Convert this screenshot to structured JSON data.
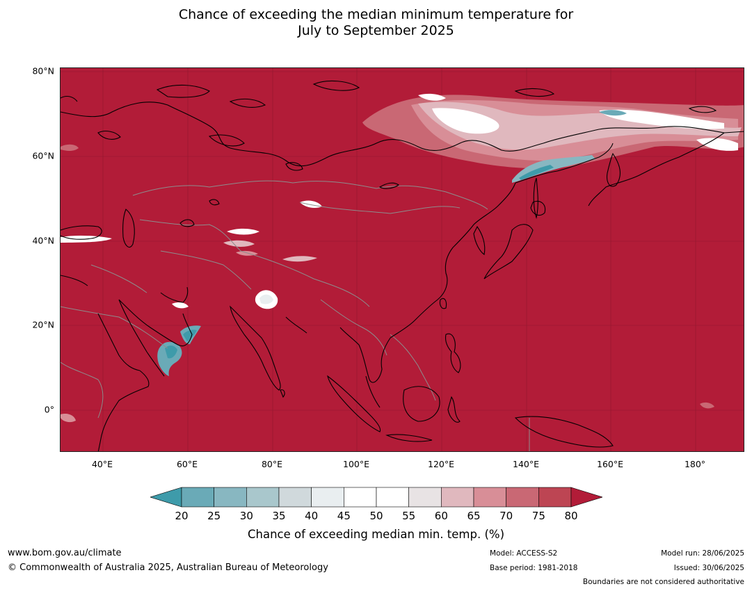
{
  "title": {
    "line1": "Chance of exceeding the median minimum temperature for",
    "line2": "July to September 2025"
  },
  "map": {
    "background_color": "#b21c38",
    "lat_labels": [
      "80°N",
      "60°N",
      "40°N",
      "20°N",
      "0°"
    ],
    "lon_labels": [
      "40°E",
      "60°E",
      "80°E",
      "100°E",
      "120°E",
      "140°E",
      "160°E",
      "180°"
    ]
  },
  "colorbar": {
    "ticks": [
      "20",
      "25",
      "30",
      "35",
      "40",
      "45",
      "50",
      "55",
      "60",
      "65",
      "70",
      "75",
      "80"
    ],
    "colors": [
      "#3e9baa",
      "#6aaab7",
      "#88b7c1",
      "#a9c7cc",
      "#d0d9dc",
      "#e9eef0",
      "#ffffff",
      "#ffffff",
      "#e8e3e4",
      "#e0b8be",
      "#d88e97",
      "#c96874",
      "#bd4553",
      "#b21c38"
    ],
    "label": "Chance of exceeding median min. temp. (%)"
  },
  "footer": {
    "website": "www.bom.gov.au/climate",
    "copyright": "© Commonwealth of Australia 2025, Australian Bureau of Meteorology",
    "model": "Model: ACCESS-S2",
    "base_period": "Base period: 1981-2018",
    "model_run": "Model run: 28/06/2025",
    "issued": "Issued: 30/06/2025",
    "disclaimer": "Boundaries are not considered authoritative"
  }
}
